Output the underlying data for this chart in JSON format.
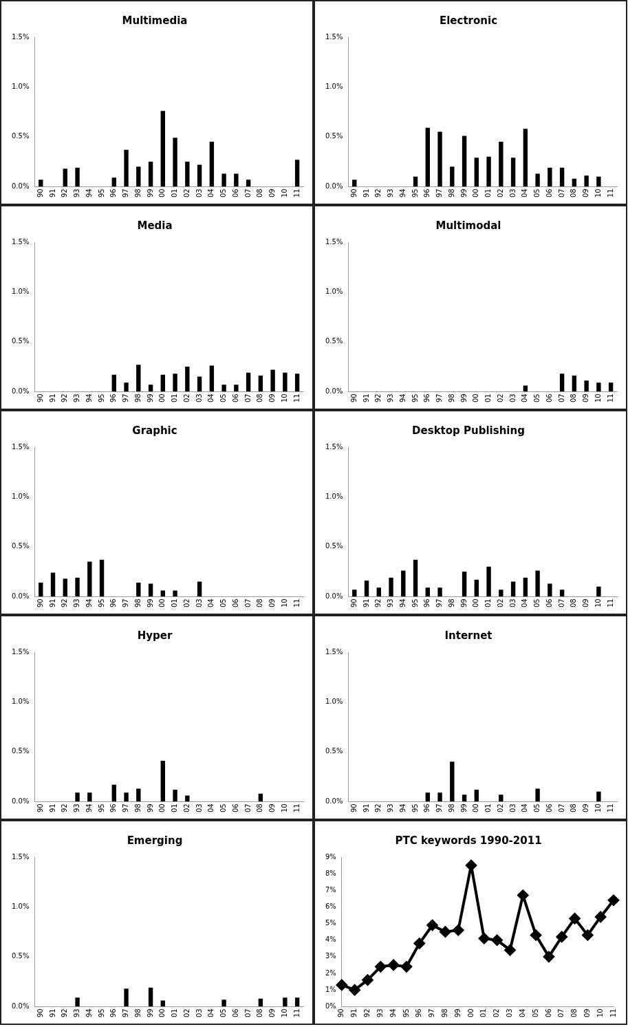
{
  "chart_data": [
    {
      "type": "bar",
      "title": "Multimedia",
      "categories": [
        "90",
        "91",
        "92",
        "93",
        "94",
        "95",
        "96",
        "97",
        "98",
        "99",
        "00",
        "01",
        "02",
        "03",
        "04",
        "05",
        "06",
        "07",
        "08",
        "09",
        "10",
        "11"
      ],
      "values": [
        0.07,
        0,
        0.18,
        0.19,
        0,
        0,
        0.09,
        0.37,
        0.2,
        0.25,
        0.76,
        0.49,
        0.25,
        0.22,
        0.45,
        0.13,
        0.13,
        0.07,
        0,
        0,
        0,
        0.27
      ],
      "color": "#000000",
      "ylim": [
        0,
        1.5
      ],
      "yticks": [
        {
          "value": 0,
          "label": "0.0%"
        },
        {
          "value": 0.5,
          "label": "0.5%"
        },
        {
          "value": 1,
          "label": "1.0%"
        },
        {
          "value": 1.5,
          "label": "1.5%"
        }
      ]
    },
    {
      "type": "bar",
      "title": "Electronic",
      "categories": [
        "90",
        "91",
        "92",
        "93",
        "94",
        "95",
        "96",
        "97",
        "98",
        "99",
        "00",
        "01",
        "02",
        "03",
        "04",
        "05",
        "06",
        "07",
        "08",
        "09",
        "10",
        "11"
      ],
      "values": [
        0.07,
        0,
        0,
        0,
        0,
        0.1,
        0.59,
        0.55,
        0.2,
        0.51,
        0.29,
        0.3,
        0.45,
        0.29,
        0.58,
        0.13,
        0.19,
        0.19,
        0.08,
        0.11,
        0.1,
        0
      ],
      "color": "#000000",
      "ylim": [
        0,
        1.5
      ],
      "yticks": [
        {
          "value": 0,
          "label": "0.0%"
        },
        {
          "value": 0.5,
          "label": "0.5%"
        },
        {
          "value": 1,
          "label": "1.0%"
        },
        {
          "value": 1.5,
          "label": "1.5%"
        }
      ]
    },
    {
      "type": "bar",
      "title": "Media",
      "categories": [
        "90",
        "91",
        "92",
        "93",
        "94",
        "95",
        "96",
        "97",
        "98",
        "99",
        "00",
        "01",
        "02",
        "03",
        "04",
        "05",
        "06",
        "07",
        "08",
        "09",
        "10",
        "11"
      ],
      "values": [
        0,
        0,
        0,
        0,
        0,
        0,
        0.17,
        0.09,
        0.27,
        0.07,
        0.17,
        0.18,
        0.25,
        0.15,
        0.26,
        0.07,
        0.07,
        0.19,
        0.16,
        0.22,
        0.19,
        0.18
      ],
      "color": "#000000",
      "ylim": [
        0,
        1.5
      ],
      "yticks": [
        {
          "value": 0,
          "label": "0.0%"
        },
        {
          "value": 0.5,
          "label": "0.5%"
        },
        {
          "value": 1,
          "label": "1.0%"
        },
        {
          "value": 1.5,
          "label": "1.5%"
        }
      ]
    },
    {
      "type": "bar",
      "title": "Multimodal",
      "categories": [
        "90",
        "91",
        "92",
        "93",
        "94",
        "95",
        "96",
        "97",
        "98",
        "99",
        "00",
        "01",
        "02",
        "03",
        "04",
        "05",
        "06",
        "07",
        "08",
        "09",
        "10",
        "11"
      ],
      "values": [
        0,
        0,
        0,
        0,
        0,
        0,
        0,
        0,
        0,
        0,
        0,
        0,
        0,
        0,
        0.06,
        0,
        0,
        0.18,
        0.16,
        0.11,
        0.09,
        0.09
      ],
      "color": "#000000",
      "ylim": [
        0,
        1.5
      ],
      "yticks": [
        {
          "value": 0,
          "label": "0.0%"
        },
        {
          "value": 0.5,
          "label": "0.5%"
        },
        {
          "value": 1,
          "label": "1.0%"
        },
        {
          "value": 1.5,
          "label": "1.5%"
        }
      ]
    },
    {
      "type": "bar",
      "title": "Graphic",
      "categories": [
        "90",
        "91",
        "92",
        "93",
        "94",
        "95",
        "96",
        "97",
        "98",
        "99",
        "00",
        "01",
        "02",
        "03",
        "04",
        "05",
        "06",
        "07",
        "08",
        "09",
        "10",
        "11"
      ],
      "values": [
        0.14,
        0.24,
        0.18,
        0.19,
        0.35,
        0.37,
        0,
        0,
        0.14,
        0.13,
        0.06,
        0.06,
        0,
        0.15,
        0,
        0,
        0,
        0,
        0,
        0,
        0,
        0
      ],
      "color": "#000000",
      "ylim": [
        0,
        1.5
      ],
      "yticks": [
        {
          "value": 0,
          "label": "0.0%"
        },
        {
          "value": 0.5,
          "label": "0.5%"
        },
        {
          "value": 1,
          "label": "1.0%"
        },
        {
          "value": 1.5,
          "label": "1.5%"
        }
      ]
    },
    {
      "type": "bar",
      "title": "Desktop Publishing",
      "categories": [
        "90",
        "91",
        "92",
        "93",
        "94",
        "95",
        "96",
        "97",
        "98",
        "99",
        "00",
        "01",
        "02",
        "03",
        "04",
        "05",
        "06",
        "07",
        "08",
        "09",
        "10",
        "11"
      ],
      "values": [
        0.07,
        0.16,
        0.09,
        0.19,
        0.26,
        0.37,
        0.09,
        0.09,
        0,
        0.25,
        0.17,
        0.3,
        0.07,
        0.15,
        0.19,
        0.26,
        0.13,
        0.07,
        0,
        0,
        0.1,
        0
      ],
      "color": "#000000",
      "ylim": [
        0,
        1.5
      ],
      "yticks": [
        {
          "value": 0,
          "label": "0.0%"
        },
        {
          "value": 0.5,
          "label": "0.5%"
        },
        {
          "value": 1,
          "label": "1.0%"
        },
        {
          "value": 1.5,
          "label": "1.5%"
        }
      ]
    },
    {
      "type": "bar",
      "title": "Hyper",
      "categories": [
        "90",
        "91",
        "92",
        "93",
        "94",
        "95",
        "96",
        "97",
        "98",
        "99",
        "00",
        "01",
        "02",
        "03",
        "04",
        "05",
        "06",
        "07",
        "08",
        "09",
        "10",
        "11"
      ],
      "values": [
        0,
        0,
        0,
        0.09,
        0.09,
        0,
        0.17,
        0.09,
        0.13,
        0,
        0.41,
        0.12,
        0.06,
        0,
        0,
        0,
        0,
        0,
        0.08,
        0,
        0,
        0
      ],
      "color": "#000000",
      "ylim": [
        0,
        1.5
      ],
      "yticks": [
        {
          "value": 0,
          "label": "0.0%"
        },
        {
          "value": 0.5,
          "label": "0.5%"
        },
        {
          "value": 1,
          "label": "1.0%"
        },
        {
          "value": 1.5,
          "label": "1.5%"
        }
      ]
    },
    {
      "type": "bar",
      "title": "Internet",
      "categories": [
        "90",
        "91",
        "92",
        "93",
        "94",
        "95",
        "96",
        "97",
        "98",
        "99",
        "00",
        "01",
        "02",
        "03",
        "04",
        "05",
        "06",
        "07",
        "08",
        "09",
        "10",
        "11"
      ],
      "values": [
        0,
        0,
        0,
        0,
        0,
        0,
        0.09,
        0.09,
        0.4,
        0.07,
        0.12,
        0,
        0.07,
        0,
        0,
        0.13,
        0,
        0,
        0,
        0,
        0.1,
        0
      ],
      "color": "#000000",
      "ylim": [
        0,
        1.5
      ],
      "yticks": [
        {
          "value": 0,
          "label": "0.0%"
        },
        {
          "value": 0.5,
          "label": "0.5%"
        },
        {
          "value": 1,
          "label": "1.0%"
        },
        {
          "value": 1.5,
          "label": "1.5%"
        }
      ]
    },
    {
      "type": "bar",
      "title": "Emerging",
      "categories": [
        "90",
        "91",
        "92",
        "93",
        "94",
        "95",
        "96",
        "97",
        "98",
        "99",
        "00",
        "01",
        "02",
        "03",
        "04",
        "05",
        "06",
        "07",
        "08",
        "09",
        "10",
        "11"
      ],
      "values": [
        0,
        0,
        0,
        0.09,
        0,
        0,
        0,
        0.18,
        0,
        0.19,
        0.06,
        0,
        0,
        0,
        0,
        0.07,
        0,
        0,
        0.08,
        0,
        0.09,
        0.09
      ],
      "color": "#000000",
      "ylim": [
        0,
        1.5
      ],
      "yticks": [
        {
          "value": 0,
          "label": "0.0%"
        },
        {
          "value": 0.5,
          "label": "0.5%"
        },
        {
          "value": 1,
          "label": "1.0%"
        },
        {
          "value": 1.5,
          "label": "1.5%"
        }
      ]
    },
    {
      "type": "line",
      "title": "PTC keywords 1990-2011",
      "categories": [
        "90",
        "91",
        "92",
        "93",
        "94",
        "95",
        "96",
        "97",
        "98",
        "99",
        "00",
        "01",
        "02",
        "03",
        "04",
        "05",
        "06",
        "07",
        "08",
        "09",
        "10",
        "11"
      ],
      "values": [
        1.3,
        1.0,
        1.6,
        2.4,
        2.5,
        2.4,
        3.8,
        4.9,
        4.5,
        4.6,
        8.5,
        4.1,
        4.0,
        3.4,
        6.7,
        4.3,
        3.0,
        4.2,
        5.3,
        4.3,
        5.4,
        6.4
      ],
      "color": "#000000",
      "marker": "diamond",
      "ylim": [
        0,
        9
      ],
      "yticks": [
        {
          "value": 0,
          "label": "0%"
        },
        {
          "value": 1,
          "label": "1%"
        },
        {
          "value": 2,
          "label": "2%"
        },
        {
          "value": 3,
          "label": "3%"
        },
        {
          "value": 4,
          "label": "4%"
        },
        {
          "value": 5,
          "label": "5%"
        },
        {
          "value": 6,
          "label": "6%"
        },
        {
          "value": 7,
          "label": "7%"
        },
        {
          "value": 8,
          "label": "8%"
        },
        {
          "value": 9,
          "label": "9%"
        }
      ]
    }
  ]
}
